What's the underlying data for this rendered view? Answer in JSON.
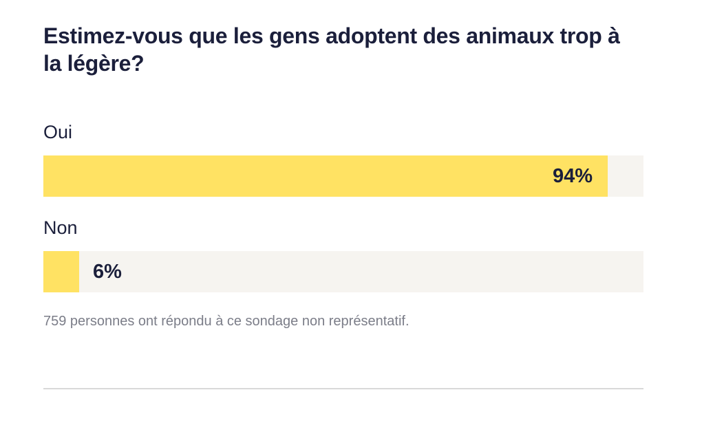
{
  "poll": {
    "question": "Estimez-vous que les gens adoptent des animaux trop à la légère?",
    "footnote": "759 personnes ont répondu à ce sondage non représentatif."
  },
  "chart_data": {
    "type": "bar",
    "orientation": "horizontal",
    "title": "Estimez-vous que les gens adoptent des animaux trop à la légère?",
    "categories": [
      "Oui",
      "Non"
    ],
    "values": [
      94,
      6
    ],
    "value_labels": [
      "94%",
      "6%"
    ],
    "unit": "%",
    "xlim": [
      0,
      100
    ],
    "grid": false,
    "legend": "none",
    "colors": {
      "fill": "#ffe263",
      "track": "#f6f4f0",
      "text": "#1b1f3b"
    }
  }
}
